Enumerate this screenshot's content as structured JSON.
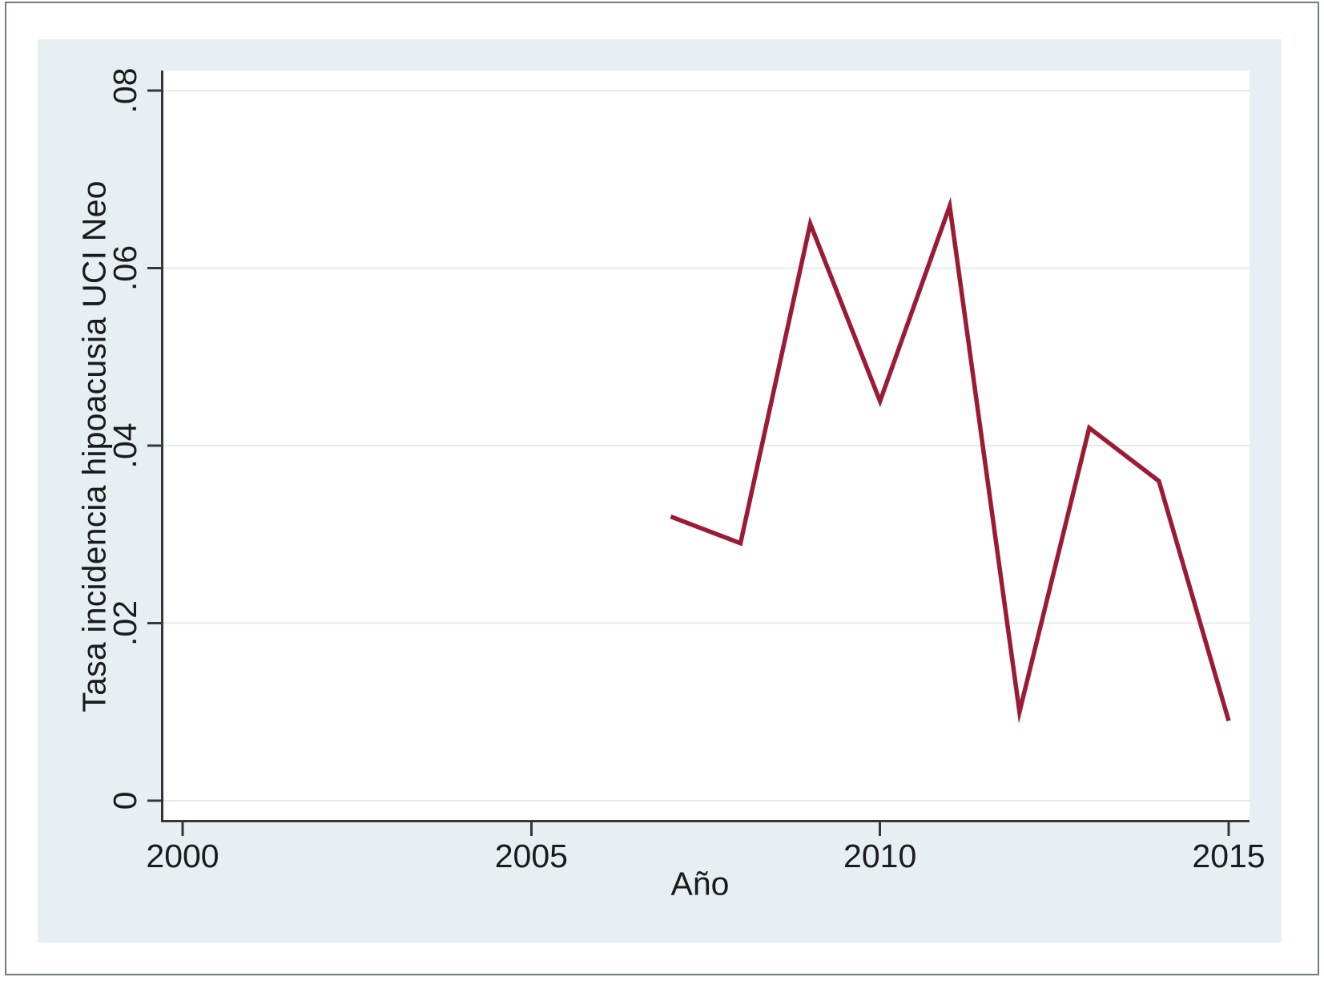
{
  "figure": {
    "page_background": "#FFFFFF",
    "border_color": "#6E7A84",
    "canvas_background": "#E8EFF2",
    "plot_background": "#FFFFFF"
  },
  "chart_data": {
    "type": "line",
    "title": "",
    "xlabel": "Año",
    "ylabel": "Tasa incidencia hipoacusia UCI Neo",
    "x": [
      2007,
      2008,
      2009,
      2010,
      2011,
      2012,
      2013,
      2014,
      2015
    ],
    "series": [
      {
        "name": "Tasa incidencia hipoacusia UCI Neo",
        "values": [
          0.032,
          0.029,
          0.065,
          0.045,
          0.067,
          0.01,
          0.042,
          0.036,
          0.009
        ],
        "color": "#9C1B34",
        "line_width": 5.5
      }
    ],
    "xlim": [
      2000,
      2015
    ],
    "ylim": [
      0,
      0.08
    ],
    "x_ticks": [
      {
        "value": 2000,
        "label": "2000"
      },
      {
        "value": 2005,
        "label": "2005"
      },
      {
        "value": 2010,
        "label": "2010"
      },
      {
        "value": 2015,
        "label": "2015"
      }
    ],
    "y_ticks": [
      {
        "value": 0,
        "label": "0"
      },
      {
        "value": 0.02,
        "label": ".02"
      },
      {
        "value": 0.04,
        "label": ".04"
      },
      {
        "value": 0.06,
        "label": ".06"
      },
      {
        "value": 0.08,
        "label": ".08"
      }
    ],
    "y_tick_label_rotation": -90,
    "grid": true,
    "legend": false,
    "gridline_color": "#E3EAEF",
    "axis_color": "#33373C",
    "text_color": "#1B1B1B"
  }
}
